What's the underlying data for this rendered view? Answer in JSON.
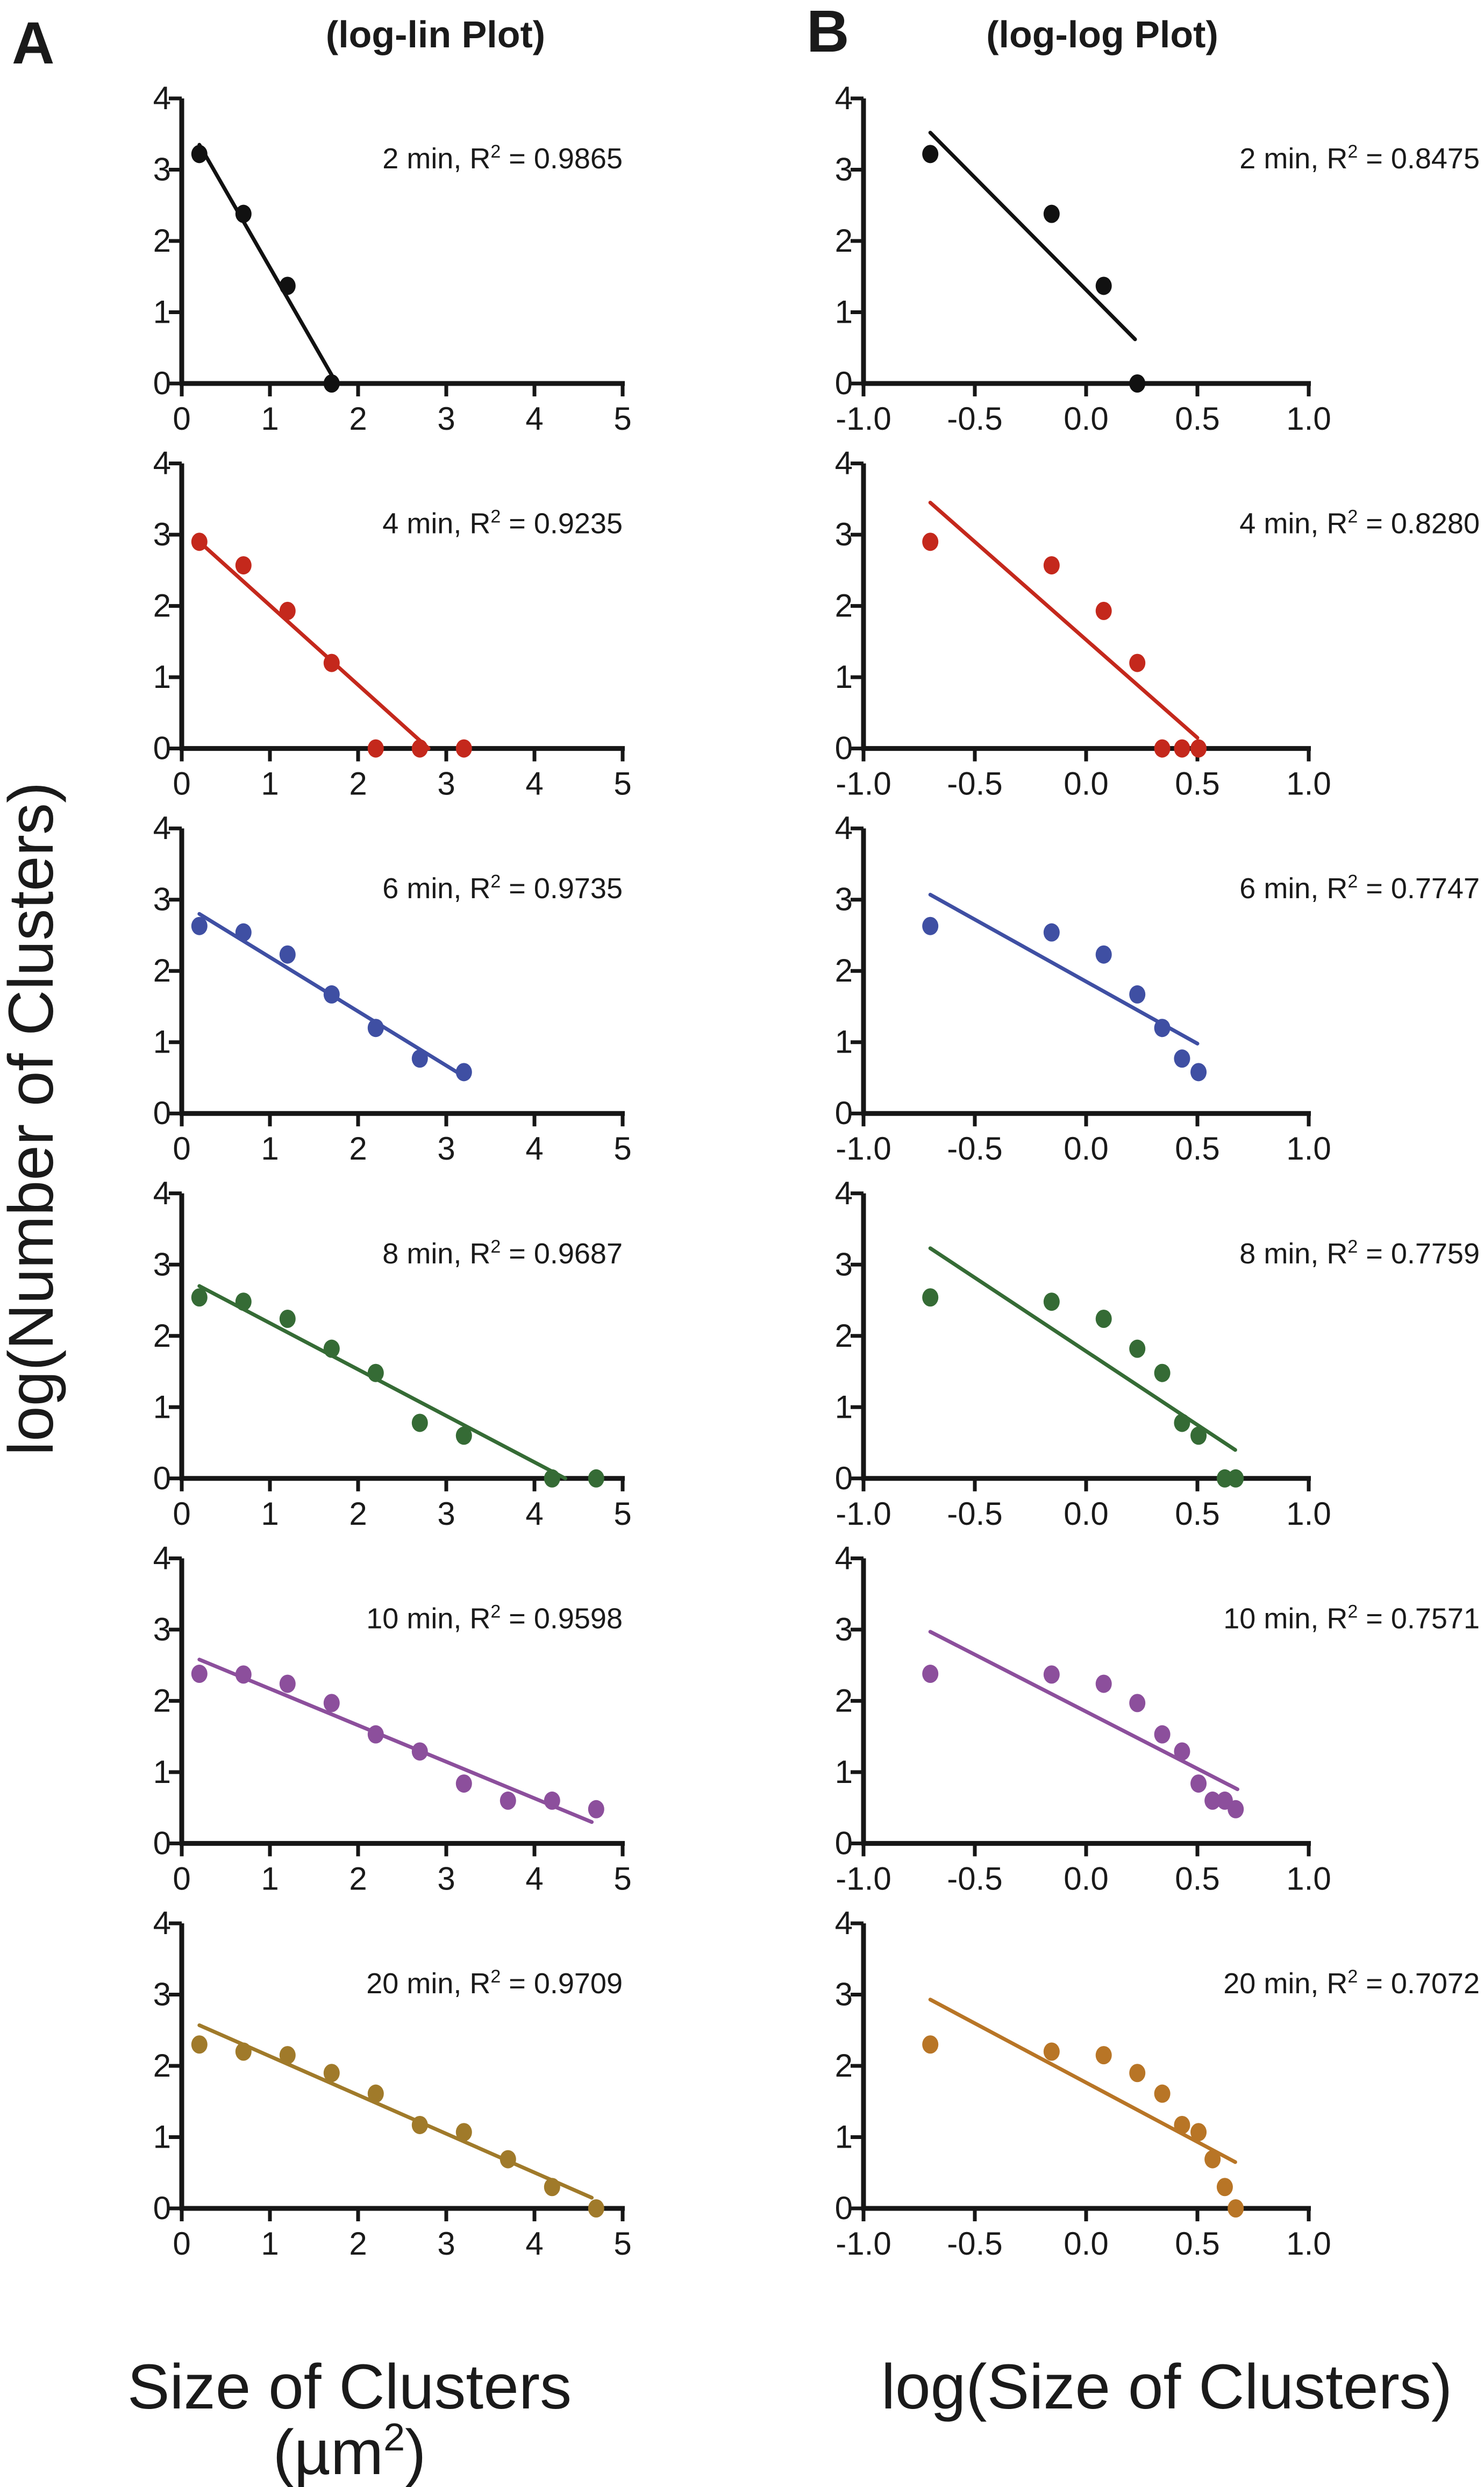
{
  "figure": {
    "panel_labels": [
      "A",
      "B"
    ],
    "column_titles": [
      "(log-lin Plot)",
      "(log-log Plot)"
    ],
    "y_axis_title": "log(Number of Clusters)",
    "x_axis_titles": [
      "Size of Clusters",
      "log(Size of Clusters)"
    ],
    "x_axis_unit_prefix": "(µm",
    "x_axis_unit_sup": "2",
    "x_axis_unit_suffix": ")"
  },
  "chart_data": [
    {
      "type": "scatter",
      "title": "(log-lin Plot)",
      "panel": "A",
      "xlabel": "Size of Clusters (µm²)",
      "ylabel": "log(Number of Clusters)",
      "xlim": [
        0,
        5
      ],
      "ylim": [
        0,
        4
      ],
      "xticks": [
        "0",
        "1",
        "2",
        "3",
        "4",
        "5"
      ],
      "xtick_values": [
        0,
        1,
        2,
        3,
        4,
        5
      ],
      "yticks": [
        "0",
        "1",
        "2",
        "3",
        "4"
      ],
      "grid": false,
      "series": [
        {
          "name": "2 min",
          "label": "2 min, R² = 0.9865",
          "r2": "0.9865",
          "color": "#111111",
          "x": [
            0.2,
            0.7,
            1.2,
            1.7
          ],
          "y": [
            3.22,
            2.38,
            1.37,
            0
          ],
          "fit": {
            "x": [
              0.2,
              1.7
            ],
            "y": [
              3.35,
              0.12
            ]
          }
        },
        {
          "name": "4 min",
          "label": "4 min, R² = 0.9235",
          "r2": "0.9235",
          "color": "#c4281c",
          "x": [
            0.2,
            0.7,
            1.2,
            1.7,
            2.2,
            2.7,
            3.2
          ],
          "y": [
            2.9,
            2.57,
            1.93,
            1.2,
            0,
            0,
            0
          ],
          "fit": {
            "x": [
              0.2,
              2.8
            ],
            "y": [
              2.9,
              0
            ]
          }
        },
        {
          "name": "6 min",
          "label": "6 min, R² = 0.9735",
          "r2": "0.9735",
          "color": "#3f4fa3",
          "x": [
            0.2,
            0.7,
            1.2,
            1.7,
            2.2,
            2.7,
            3.2
          ],
          "y": [
            2.63,
            2.54,
            2.23,
            1.67,
            1.2,
            0.77,
            0.58
          ],
          "fit": {
            "x": [
              0.2,
              3.2
            ],
            "y": [
              2.8,
              0.52
            ]
          }
        },
        {
          "name": "8 min",
          "label": "8 min, R² = 0.9687",
          "r2": "0.9687",
          "color": "#356b35",
          "x": [
            0.2,
            0.7,
            1.2,
            1.7,
            2.2,
            2.7,
            3.2,
            4.2,
            4.7
          ],
          "y": [
            2.54,
            2.48,
            2.24,
            1.82,
            1.48,
            0.78,
            0.6,
            0,
            0
          ],
          "fit": {
            "x": [
              0.2,
              4.35
            ],
            "y": [
              2.7,
              0
            ]
          }
        },
        {
          "name": "10 min",
          "label": "10 min, R² = 0.9598",
          "r2": "0.9598",
          "color": "#8c4f9c",
          "x": [
            0.2,
            0.7,
            1.2,
            1.7,
            2.2,
            2.7,
            3.2,
            3.7,
            4.2,
            4.7
          ],
          "y": [
            2.38,
            2.37,
            2.24,
            1.97,
            1.53,
            1.29,
            0.84,
            0.6,
            0.6,
            0.48
          ],
          "fit": {
            "x": [
              0.2,
              4.65
            ],
            "y": [
              2.58,
              0.3
            ]
          }
        },
        {
          "name": "20 min",
          "label": "20 min, R² = 0.9709",
          "r2": "0.9709",
          "color": "#a07a2a",
          "x": [
            0.2,
            0.7,
            1.2,
            1.7,
            2.2,
            2.7,
            3.2,
            3.7,
            4.2,
            4.7
          ],
          "y": [
            2.3,
            2.2,
            2.15,
            1.9,
            1.61,
            1.17,
            1.07,
            0.69,
            0.3,
            0
          ],
          "fit": {
            "x": [
              0.2,
              4.65
            ],
            "y": [
              2.57,
              0.15
            ]
          }
        }
      ]
    },
    {
      "type": "scatter",
      "title": "(log-log Plot)",
      "panel": "B",
      "xlabel": "log(Size of Clusters)",
      "ylabel": "log(Number of Clusters)",
      "xlim": [
        -1.0,
        1.0
      ],
      "ylim": [
        0,
        4
      ],
      "xticks": [
        "-1.0",
        "-0.5",
        "0.0",
        "0.5",
        "1.0"
      ],
      "xtick_values": [
        -1.0,
        -0.5,
        0.0,
        0.5,
        1.0
      ],
      "yticks": [
        "0",
        "1",
        "2",
        "3",
        "4"
      ],
      "grid": false,
      "series": [
        {
          "name": "2 min",
          "label": "2 min, R² = 0.8475",
          "r2": "0.8475",
          "color": "#111111",
          "x": [
            -0.7,
            -0.155,
            0.079,
            0.23
          ],
          "y": [
            3.22,
            2.38,
            1.37,
            0
          ],
          "fit": {
            "x": [
              -0.7,
              0.22
            ],
            "y": [
              3.52,
              0.62
            ]
          }
        },
        {
          "name": "4 min",
          "label": "4 min, R² = 0.8280",
          "r2": "0.8280",
          "color": "#c4281c",
          "x": [
            -0.7,
            -0.155,
            0.079,
            0.23,
            0.342,
            0.431,
            0.505
          ],
          "y": [
            2.9,
            2.57,
            1.93,
            1.2,
            0,
            0,
            0
          ],
          "fit": {
            "x": [
              -0.7,
              0.5
            ],
            "y": [
              3.45,
              0.15
            ]
          }
        },
        {
          "name": "6 min",
          "label": "6 min, R² = 0.7747",
          "r2": "0.7747",
          "color": "#3f4fa3",
          "x": [
            -0.7,
            -0.155,
            0.079,
            0.23,
            0.342,
            0.431,
            0.505
          ],
          "y": [
            2.63,
            2.54,
            2.23,
            1.67,
            1.2,
            0.77,
            0.58
          ],
          "fit": {
            "x": [
              -0.7,
              0.5
            ],
            "y": [
              3.07,
              0.98
            ]
          }
        },
        {
          "name": "8 min",
          "label": "8 min, R² = 0.7759",
          "r2": "0.7759",
          "color": "#356b35",
          "x": [
            -0.7,
            -0.155,
            0.079,
            0.23,
            0.342,
            0.431,
            0.505,
            0.623,
            0.672
          ],
          "y": [
            2.54,
            2.48,
            2.24,
            1.82,
            1.48,
            0.78,
            0.6,
            0,
            0
          ],
          "fit": {
            "x": [
              -0.7,
              0.67
            ],
            "y": [
              3.23,
              0.4
            ]
          }
        },
        {
          "name": "10 min",
          "label": "10 min, R² = 0.7571",
          "r2": "0.7571",
          "color": "#8c4f9c",
          "x": [
            -0.7,
            -0.155,
            0.079,
            0.23,
            0.342,
            0.431,
            0.505,
            0.568,
            0.623,
            0.672
          ],
          "y": [
            2.38,
            2.37,
            2.24,
            1.97,
            1.53,
            1.29,
            0.84,
            0.6,
            0.6,
            0.48
          ],
          "fit": {
            "x": [
              -0.7,
              0.68
            ],
            "y": [
              2.97,
              0.76
            ]
          }
        },
        {
          "name": "20 min",
          "label": "20 min, R² = 0.7072",
          "r2": "0.7072",
          "color": "#b87526",
          "x": [
            -0.7,
            -0.155,
            0.079,
            0.23,
            0.342,
            0.431,
            0.505,
            0.568,
            0.623,
            0.672
          ],
          "y": [
            2.3,
            2.2,
            2.15,
            1.9,
            1.61,
            1.17,
            1.07,
            0.69,
            0.3,
            0
          ],
          "fit": {
            "x": [
              -0.7,
              0.67
            ],
            "y": [
              2.93,
              0.65
            ]
          }
        }
      ]
    }
  ]
}
